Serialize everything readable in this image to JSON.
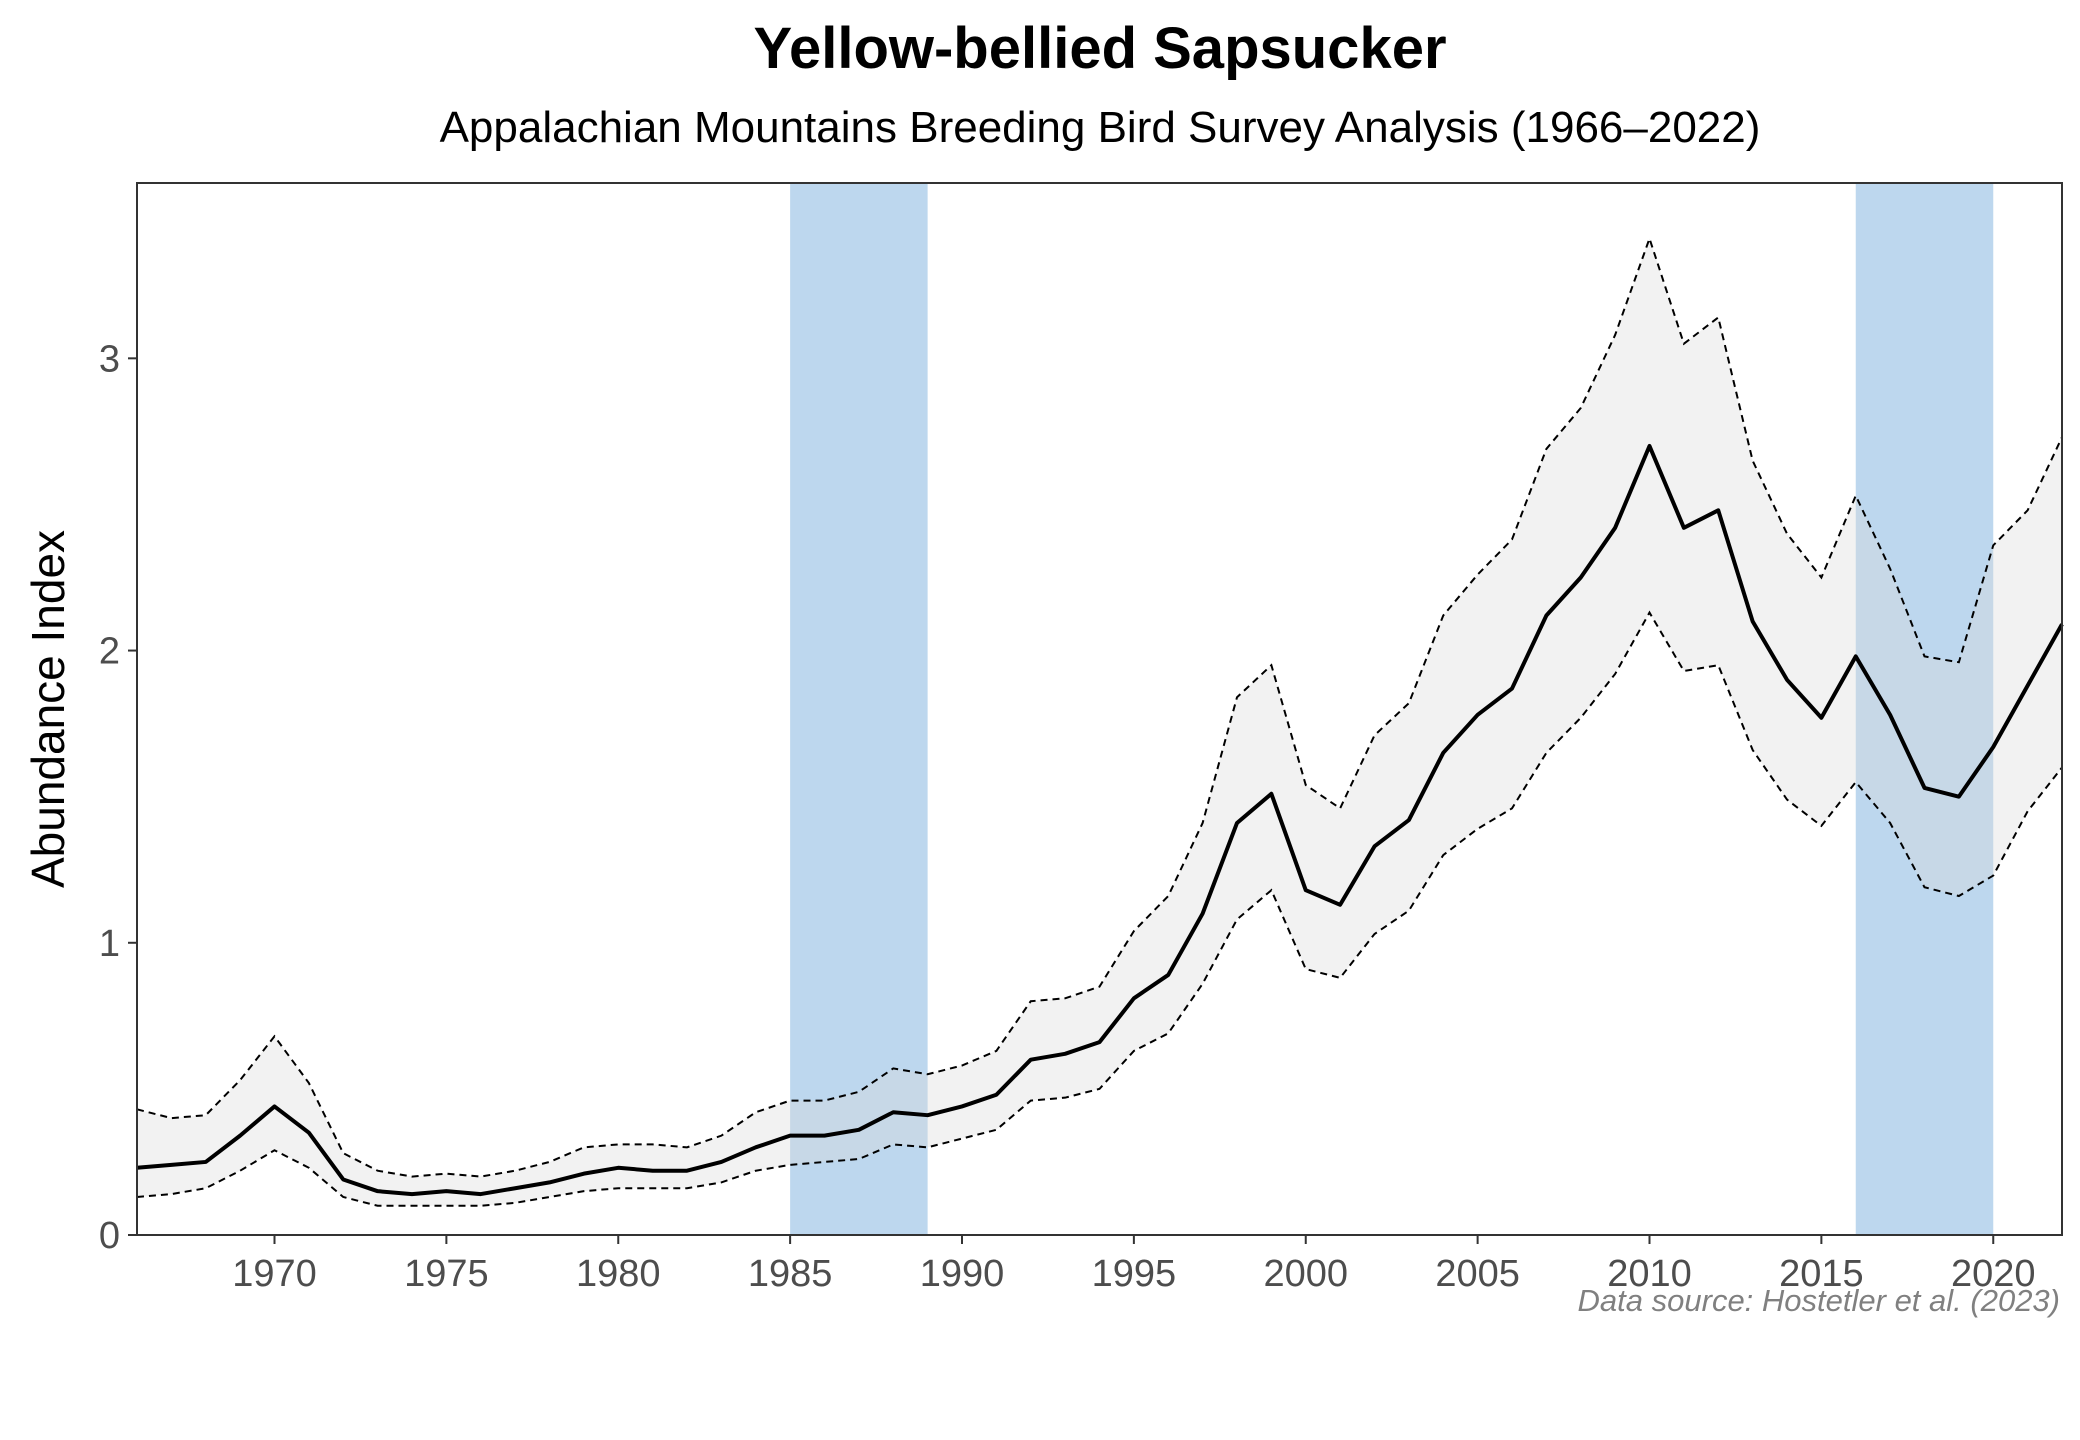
{
  "chart_data": {
    "type": "line",
    "title": "Yellow-bellied Sapsucker",
    "subtitle": "Appalachian Mountains Breeding Bird Survey Analysis (1966–2022)",
    "xlabel": "",
    "ylabel": "Abundance Index",
    "caption": "Data source: Hostetler et al. (2023)",
    "xlim": [
      1966,
      2022
    ],
    "ylim": [
      0,
      3.6
    ],
    "x_ticks": [
      1970,
      1975,
      1980,
      1985,
      1990,
      1995,
      2000,
      2005,
      2010,
      2015,
      2020
    ],
    "y_ticks": [
      0,
      1,
      2,
      3
    ],
    "grid": false,
    "highlight_bands": [
      {
        "start": 1985,
        "end": 1989,
        "color": "#bdd7ee"
      },
      {
        "start": 2016,
        "end": 2020,
        "color": "#bdd7ee"
      }
    ],
    "colors": {
      "band": "#bdd7ee",
      "ribbon": "#d9d9d9",
      "line": "#000000",
      "background": "#ffffff"
    },
    "x": [
      1966,
      1967,
      1968,
      1969,
      1970,
      1971,
      1972,
      1973,
      1974,
      1975,
      1976,
      1977,
      1978,
      1979,
      1980,
      1981,
      1982,
      1983,
      1984,
      1985,
      1986,
      1987,
      1988,
      1989,
      1990,
      1991,
      1992,
      1993,
      1994,
      1995,
      1996,
      1997,
      1998,
      1999,
      2000,
      2001,
      2002,
      2003,
      2004,
      2005,
      2006,
      2007,
      2008,
      2009,
      2010,
      2011,
      2012,
      2013,
      2014,
      2015,
      2016,
      2017,
      2018,
      2019,
      2020,
      2021,
      2022
    ],
    "series": [
      {
        "values": [
          0.23,
          0.24,
          0.25,
          0.34,
          0.44,
          0.35,
          0.19,
          0.15,
          0.14,
          0.15,
          0.14,
          0.16,
          0.18,
          0.21,
          0.23,
          0.22,
          0.22,
          0.25,
          0.3,
          0.34,
          0.34,
          0.36,
          0.42,
          0.41,
          0.44,
          0.48,
          0.6,
          0.62,
          0.66,
          0.81,
          0.89,
          1.1,
          1.41,
          1.51,
          1.18,
          1.13,
          1.33,
          1.42,
          1.65,
          1.78,
          1.87,
          2.12,
          2.25,
          2.42,
          2.7,
          2.42,
          2.48,
          2.1,
          1.9,
          1.77,
          1.98,
          1.78,
          1.53,
          1.5,
          1.67,
          1.88,
          2.09
        ],
        "lower": [
          0.13,
          0.14,
          0.16,
          0.22,
          0.29,
          0.23,
          0.13,
          0.1,
          0.1,
          0.1,
          0.1,
          0.11,
          0.13,
          0.15,
          0.16,
          0.16,
          0.16,
          0.18,
          0.22,
          0.24,
          0.25,
          0.26,
          0.31,
          0.3,
          0.33,
          0.36,
          0.46,
          0.47,
          0.5,
          0.63,
          0.69,
          0.86,
          1.08,
          1.18,
          0.91,
          0.88,
          1.03,
          1.11,
          1.3,
          1.39,
          1.46,
          1.65,
          1.77,
          1.92,
          2.13,
          1.93,
          1.95,
          1.66,
          1.49,
          1.4,
          1.55,
          1.41,
          1.19,
          1.16,
          1.23,
          1.45,
          1.6
        ],
        "upper": [
          0.43,
          0.4,
          0.41,
          0.53,
          0.68,
          0.52,
          0.28,
          0.22,
          0.2,
          0.21,
          0.2,
          0.22,
          0.25,
          0.3,
          0.31,
          0.31,
          0.3,
          0.34,
          0.42,
          0.46,
          0.46,
          0.49,
          0.57,
          0.55,
          0.58,
          0.63,
          0.8,
          0.81,
          0.85,
          1.04,
          1.16,
          1.41,
          1.84,
          1.95,
          1.54,
          1.46,
          1.71,
          1.82,
          2.12,
          2.26,
          2.38,
          2.69,
          2.83,
          3.08,
          3.41,
          3.05,
          3.14,
          2.65,
          2.4,
          2.25,
          2.53,
          2.28,
          1.98,
          1.96,
          2.36,
          2.48,
          2.73
        ]
      }
    ]
  }
}
